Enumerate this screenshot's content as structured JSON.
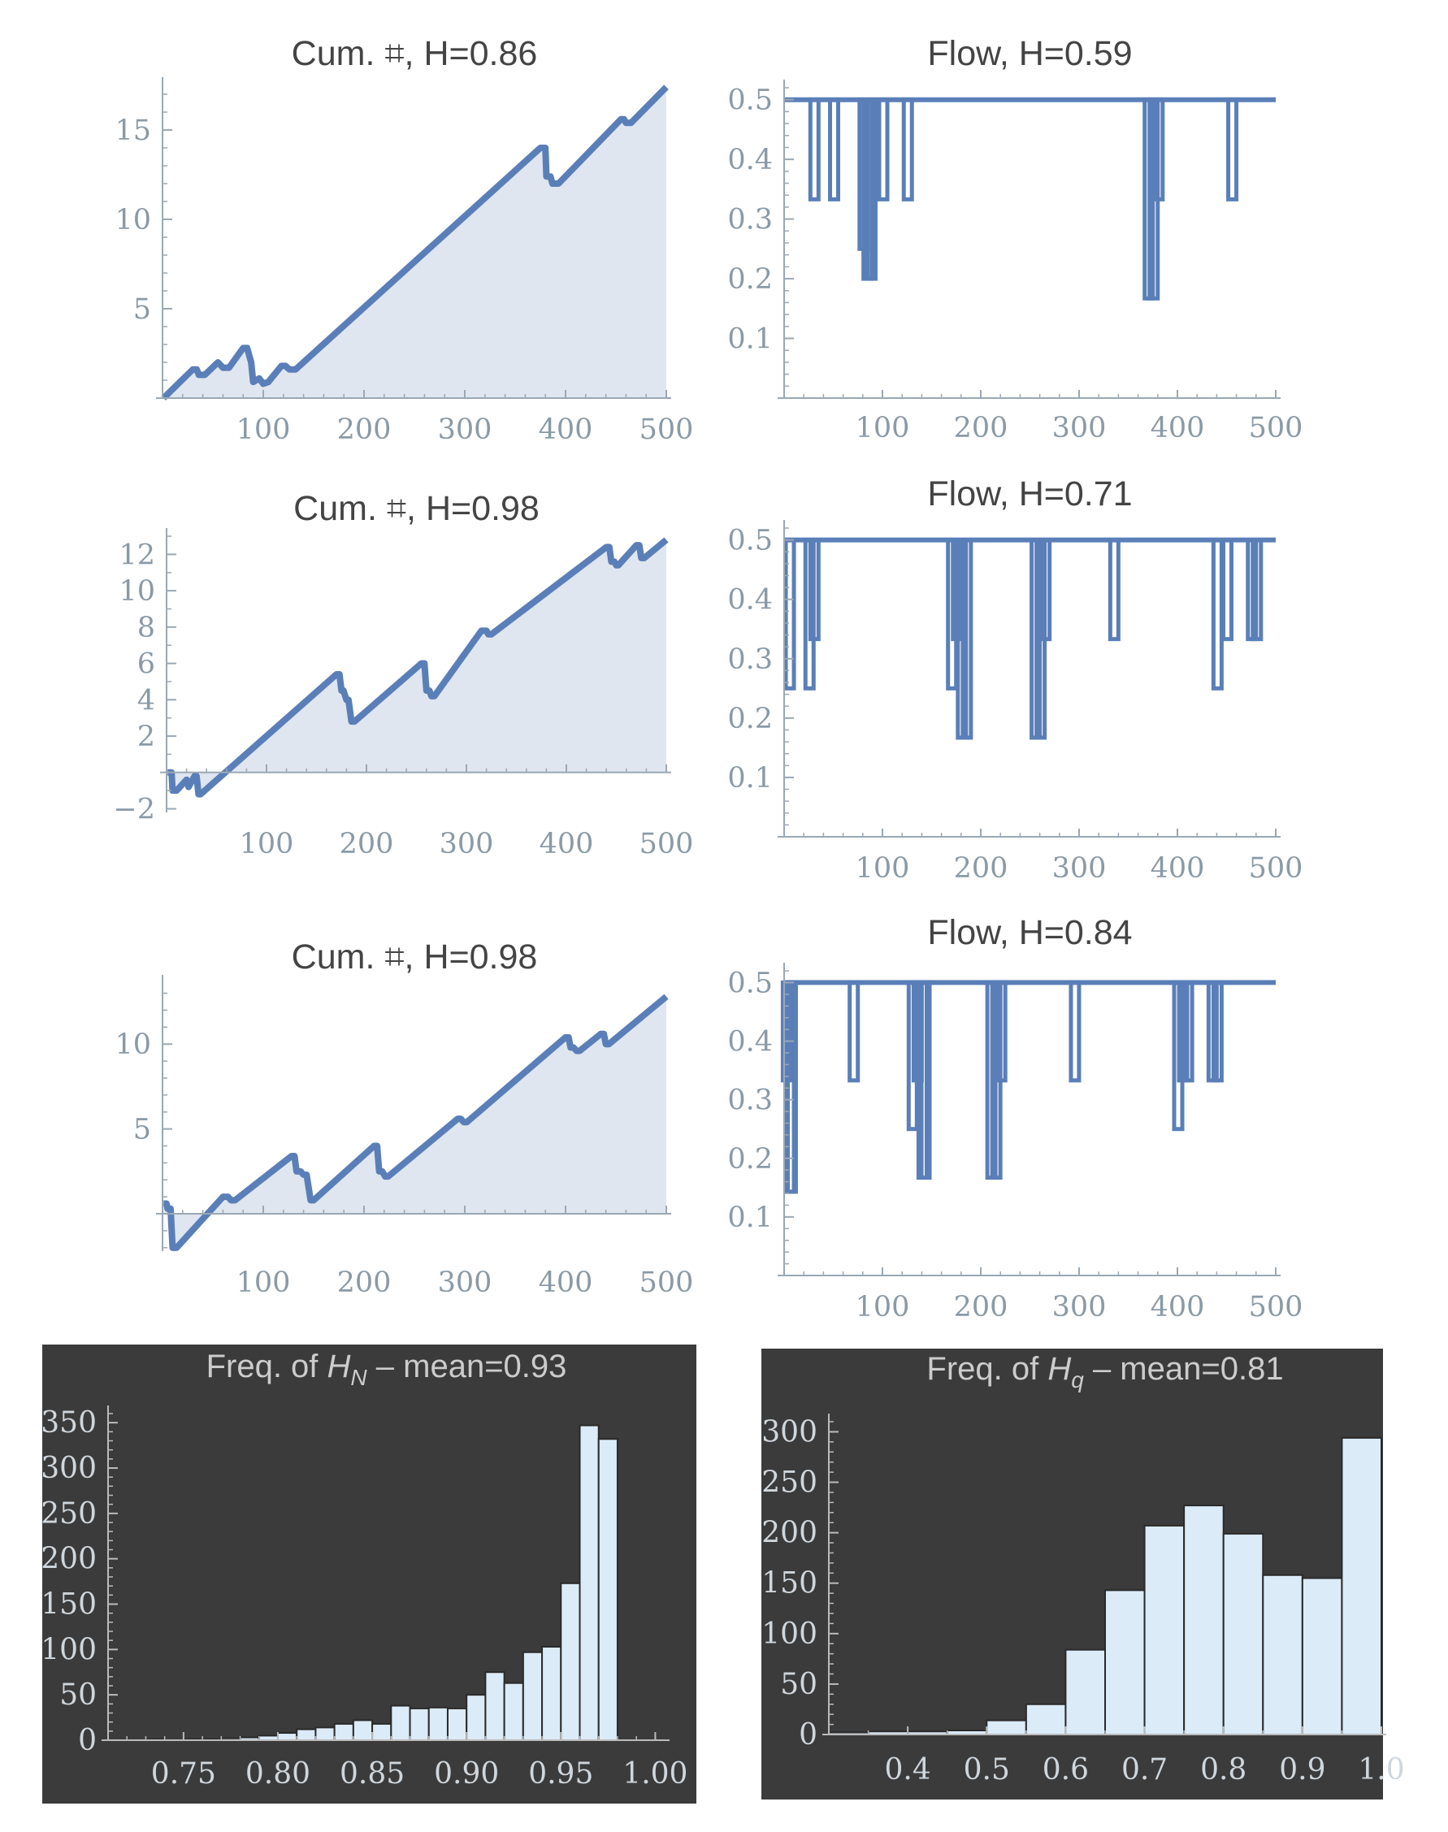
{
  "colors": {
    "line": "#5a7fb8",
    "fill": "#dfe6f0",
    "axis": "#9aa8b4",
    "tick_text": "#8a9aa6",
    "panel_dark": "#3b3b3b",
    "bar_fill": "#dcebf8",
    "bar_edge": "#2a2a2a",
    "dark_axis": "#bbbbbb"
  },
  "chart_data": [
    {
      "id": "cum1",
      "type": "area",
      "title": "Cum. ⌗, H=0.86",
      "xlim": [
        0,
        500
      ],
      "ylim": [
        0,
        17.5
      ],
      "xticks": [
        100,
        200,
        300,
        400,
        500
      ],
      "yticks": [
        5,
        10,
        15
      ],
      "points": [
        [
          1,
          0
        ],
        [
          30,
          1.6
        ],
        [
          34,
          1.6
        ],
        [
          36,
          1.3
        ],
        [
          42,
          1.3
        ],
        [
          55,
          2.0
        ],
        [
          60,
          1.7
        ],
        [
          66,
          1.7
        ],
        [
          80,
          2.8
        ],
        [
          84,
          2.8
        ],
        [
          88,
          2.0
        ],
        [
          90,
          0.9
        ],
        [
          96,
          1.1
        ],
        [
          100,
          0.8
        ],
        [
          105,
          0.9
        ],
        [
          118,
          1.8
        ],
        [
          122,
          1.8
        ],
        [
          126,
          1.6
        ],
        [
          132,
          1.6
        ],
        [
          375,
          14.0
        ],
        [
          380,
          14.0
        ],
        [
          381,
          12.4
        ],
        [
          385,
          12.4
        ],
        [
          387,
          12.0
        ],
        [
          393,
          12.0
        ],
        [
          455,
          15.6
        ],
        [
          458,
          15.6
        ],
        [
          460,
          15.4
        ],
        [
          465,
          15.4
        ],
        [
          500,
          17.4
        ]
      ]
    },
    {
      "id": "flow1",
      "type": "line",
      "title": "Flow, H=0.59",
      "xlim": [
        0,
        500
      ],
      "ylim": [
        0,
        0.52
      ],
      "xticks": [
        100,
        200,
        300,
        400,
        500
      ],
      "yticks": [
        0.1,
        0.2,
        0.3,
        0.4,
        0.5
      ],
      "baseline": 0.5,
      "dips": [
        [
          30,
          0.333
        ],
        [
          50,
          0.333
        ],
        [
          80,
          0.25
        ],
        [
          84,
          0.2
        ],
        [
          88,
          0.2
        ],
        [
          100,
          0.333
        ],
        [
          125,
          0.333
        ],
        [
          370,
          0.167
        ],
        [
          375,
          0.167
        ],
        [
          380,
          0.333
        ],
        [
          455,
          0.333
        ]
      ]
    },
    {
      "id": "cum2",
      "type": "area",
      "title": "Cum. ⌗, H=0.98",
      "xlim": [
        0,
        500
      ],
      "ylim": [
        -2.2,
        13
      ],
      "xticks": [
        100,
        200,
        300,
        400,
        500
      ],
      "yticks": [
        -2,
        2,
        4,
        6,
        8,
        10,
        12
      ],
      "points": [
        [
          1,
          0
        ],
        [
          5,
          0
        ],
        [
          6,
          -1.0
        ],
        [
          10,
          -1.0
        ],
        [
          20,
          -0.4
        ],
        [
          22,
          -0.8
        ],
        [
          28,
          -0.2
        ],
        [
          30,
          -0.2
        ],
        [
          32,
          -1.2
        ],
        [
          34,
          -1.2
        ],
        [
          170,
          5.4
        ],
        [
          173,
          5.4
        ],
        [
          175,
          4.5
        ],
        [
          177,
          4.5
        ],
        [
          180,
          4.0
        ],
        [
          182,
          4.0
        ],
        [
          185,
          2.8
        ],
        [
          188,
          2.8
        ],
        [
          255,
          6.0
        ],
        [
          258,
          6.0
        ],
        [
          260,
          4.5
        ],
        [
          263,
          4.5
        ],
        [
          265,
          4.2
        ],
        [
          268,
          4.2
        ],
        [
          315,
          7.8
        ],
        [
          320,
          7.8
        ],
        [
          322,
          7.6
        ],
        [
          325,
          7.6
        ],
        [
          440,
          12.4
        ],
        [
          443,
          12.4
        ],
        [
          445,
          11.6
        ],
        [
          448,
          11.6
        ],
        [
          450,
          11.4
        ],
        [
          452,
          11.4
        ],
        [
          470,
          12.5
        ],
        [
          473,
          12.5
        ],
        [
          475,
          11.8
        ],
        [
          478,
          11.8
        ],
        [
          500,
          12.8
        ]
      ]
    },
    {
      "id": "flow2",
      "type": "line",
      "title": "Flow, H=0.71",
      "xlim": [
        0,
        500
      ],
      "ylim": [
        0,
        0.52
      ],
      "xticks": [
        100,
        200,
        300,
        400,
        500
      ],
      "yticks": [
        0.1,
        0.2,
        0.3,
        0.4,
        0.5
      ],
      "baseline": 0.5,
      "dips": [
        [
          5,
          0.25
        ],
        [
          25,
          0.25
        ],
        [
          30,
          0.333
        ],
        [
          170,
          0.25
        ],
        [
          175,
          0.333
        ],
        [
          180,
          0.167
        ],
        [
          185,
          0.167
        ],
        [
          255,
          0.167
        ],
        [
          260,
          0.167
        ],
        [
          265,
          0.333
        ],
        [
          335,
          0.333
        ],
        [
          440,
          0.25
        ],
        [
          450,
          0.333
        ],
        [
          475,
          0.333
        ],
        [
          480,
          0.333
        ]
      ]
    },
    {
      "id": "cum3",
      "type": "area",
      "title": "Cum. ⌗, H=0.98",
      "xlim": [
        0,
        500
      ],
      "ylim": [
        -2.2,
        13.6
      ],
      "xticks": [
        100,
        200,
        300,
        400,
        500
      ],
      "yticks": [
        5,
        10
      ],
      "points": [
        [
          1,
          0.6
        ],
        [
          4,
          0.6
        ],
        [
          5,
          0.3
        ],
        [
          8,
          0.3
        ],
        [
          10,
          -2.0
        ],
        [
          14,
          -2.0
        ],
        [
          60,
          1.0
        ],
        [
          65,
          1.0
        ],
        [
          68,
          0.8
        ],
        [
          72,
          0.8
        ],
        [
          128,
          3.4
        ],
        [
          131,
          3.4
        ],
        [
          133,
          2.5
        ],
        [
          137,
          2.5
        ],
        [
          140,
          2.3
        ],
        [
          143,
          2.3
        ],
        [
          147,
          0.8
        ],
        [
          150,
          0.8
        ],
        [
          210,
          4.0
        ],
        [
          213,
          4.0
        ],
        [
          215,
          2.5
        ],
        [
          218,
          2.5
        ],
        [
          221,
          2.2
        ],
        [
          224,
          2.2
        ],
        [
          293,
          5.6
        ],
        [
          296,
          5.6
        ],
        [
          299,
          5.4
        ],
        [
          302,
          5.4
        ],
        [
          400,
          10.4
        ],
        [
          403,
          10.4
        ],
        [
          405,
          9.8
        ],
        [
          408,
          9.8
        ],
        [
          411,
          9.6
        ],
        [
          414,
          9.6
        ],
        [
          435,
          10.6
        ],
        [
          438,
          10.6
        ],
        [
          440,
          10.0
        ],
        [
          443,
          10.0
        ],
        [
          500,
          12.8
        ]
      ]
    },
    {
      "id": "flow3",
      "type": "line",
      "title": "Flow, H=0.84",
      "xlim": [
        0,
        500
      ],
      "ylim": [
        0,
        0.52
      ],
      "xticks": [
        100,
        200,
        300,
        400,
        500
      ],
      "yticks": [
        0.1,
        0.2,
        0.3,
        0.4,
        0.5
      ],
      "baseline": 0.5,
      "dips": [
        [
          2,
          0.333
        ],
        [
          5,
          0.143
        ],
        [
          7,
          0.143
        ],
        [
          70,
          0.333
        ],
        [
          130,
          0.25
        ],
        [
          135,
          0.333
        ],
        [
          140,
          0.167
        ],
        [
          143,
          0.167
        ],
        [
          210,
          0.167
        ],
        [
          215,
          0.167
        ],
        [
          220,
          0.333
        ],
        [
          295,
          0.333
        ],
        [
          400,
          0.25
        ],
        [
          405,
          0.333
        ],
        [
          410,
          0.333
        ],
        [
          435,
          0.333
        ],
        [
          440,
          0.333
        ]
      ]
    },
    {
      "id": "hist1",
      "type": "bar",
      "title_prefix": "Freq. of ",
      "title_var": "H",
      "title_sub": "N",
      "title_suffix": " – mean=0.93",
      "xlim": [
        0.71,
        1.005
      ],
      "ylim": [
        0,
        360
      ],
      "xticks": [
        0.75,
        0.8,
        0.85,
        0.9,
        0.95,
        1.0
      ],
      "xtick_labels": [
        "0.75",
        "0.80",
        "0.85",
        "0.90",
        "0.95",
        "1.00"
      ],
      "yticks": [
        0,
        50,
        100,
        150,
        200,
        250,
        300,
        350
      ],
      "bin_start": 0.71,
      "bin_width": 0.01,
      "values": [
        0,
        0,
        1,
        0,
        1,
        1,
        2,
        3,
        5,
        8,
        12,
        14,
        18,
        22,
        18,
        38,
        35,
        36,
        35,
        50,
        75,
        63,
        97,
        103,
        173,
        347,
        332
      ]
    },
    {
      "id": "hist2",
      "type": "bar",
      "title_prefix": "Freq. of ",
      "title_var": "H",
      "title_sub": "q",
      "title_suffix": " – mean=0.81",
      "xlim": [
        0.3,
        1.0
      ],
      "ylim": [
        0,
        310
      ],
      "xticks": [
        0.4,
        0.5,
        0.6,
        0.7,
        0.8,
        0.9,
        1.0
      ],
      "xtick_labels": [
        "0.4",
        "0.5",
        "0.6",
        "0.7",
        "0.8",
        "0.9",
        "1.0"
      ],
      "yticks": [
        0,
        50,
        100,
        150,
        200,
        250,
        300
      ],
      "bin_start": 0.3,
      "bin_width": 0.05,
      "values": [
        2,
        3,
        3,
        4,
        14,
        30,
        84,
        143,
        207,
        227,
        199,
        158,
        155,
        294
      ]
    }
  ]
}
